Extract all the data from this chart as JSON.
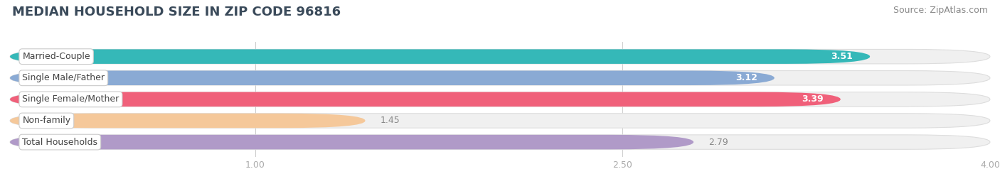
{
  "title": "MEDIAN HOUSEHOLD SIZE IN ZIP CODE 96816",
  "source": "Source: ZipAtlas.com",
  "categories": [
    "Married-Couple",
    "Single Male/Father",
    "Single Female/Mother",
    "Non-family",
    "Total Households"
  ],
  "values": [
    3.51,
    3.12,
    3.39,
    1.45,
    2.79
  ],
  "bar_colors": [
    "#35b8b8",
    "#8aaad4",
    "#f0607a",
    "#f5c89a",
    "#b09ac8"
  ],
  "value_colors": [
    "white",
    "white",
    "white",
    "#888888",
    "#888888"
  ],
  "xlim_start": 0.0,
  "xlim_end": 4.0,
  "xticks": [
    1.0,
    2.5,
    4.0
  ],
  "background_color": "#ffffff",
  "bar_bg_color": "#f0f0f0",
  "bar_bg_edge_color": "#dddddd",
  "title_fontsize": 13,
  "source_fontsize": 9,
  "label_fontsize": 9,
  "value_fontsize": 9,
  "bar_height": 0.68,
  "bar_gap": 0.18,
  "figsize": [
    14.06,
    2.69
  ],
  "dpi": 100
}
